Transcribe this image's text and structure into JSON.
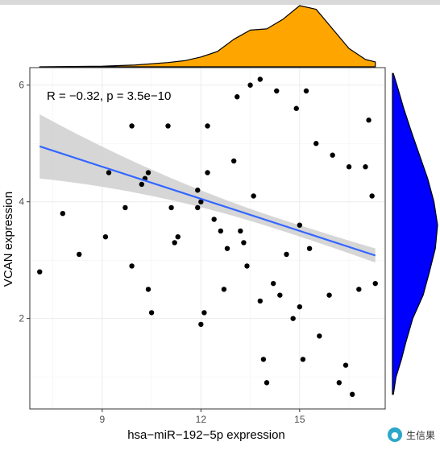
{
  "chart_data": {
    "type": "scatter",
    "title": "",
    "annotation": "R = −0.32, p = 3.5e−10",
    "xlabel": "hsa−miR−192−5p expression",
    "ylabel": "VCAN expression",
    "xlim": [
      6.8,
      17.6
    ],
    "ylim": [
      0.45,
      6.3
    ],
    "x_ticks": [
      9,
      12,
      15
    ],
    "y_ticks": [
      2,
      4,
      6
    ],
    "grid": true,
    "colors": {
      "points": "#000000",
      "fit_line": "#3366FF",
      "confidence_band": "#cccccc",
      "top_density": "#FFA500",
      "right_density": "#0000FF"
    },
    "regression": {
      "x": [
        7.1,
        17.3
      ],
      "y": [
        4.95,
        3.08
      ],
      "ci_low_half_width": [
        0.55,
        0.12
      ]
    },
    "points": [
      [
        7.1,
        2.8
      ],
      [
        7.8,
        3.8
      ],
      [
        8.3,
        3.1
      ],
      [
        9.1,
        3.4
      ],
      [
        9.2,
        4.5
      ],
      [
        9.7,
        3.9
      ],
      [
        9.9,
        2.9
      ],
      [
        9.9,
        5.3
      ],
      [
        10.2,
        4.3
      ],
      [
        10.3,
        4.4
      ],
      [
        10.4,
        4.5
      ],
      [
        10.4,
        2.5
      ],
      [
        10.5,
        2.1
      ],
      [
        11.0,
        5.3
      ],
      [
        11.1,
        3.9
      ],
      [
        11.2,
        3.3
      ],
      [
        11.3,
        3.4
      ],
      [
        11.9,
        4.2
      ],
      [
        11.9,
        3.9
      ],
      [
        12.0,
        1.9
      ],
      [
        12.0,
        4.0
      ],
      [
        12.1,
        2.1
      ],
      [
        12.2,
        5.3
      ],
      [
        12.2,
        4.5
      ],
      [
        12.4,
        3.7
      ],
      [
        12.6,
        3.5
      ],
      [
        12.7,
        2.5
      ],
      [
        12.8,
        3.2
      ],
      [
        13.0,
        4.7
      ],
      [
        13.2,
        3.5
      ],
      [
        13.3,
        3.3
      ],
      [
        13.4,
        2.9
      ],
      [
        13.6,
        4.1
      ],
      [
        13.8,
        2.3
      ],
      [
        13.9,
        1.3
      ],
      [
        14.0,
        0.9
      ],
      [
        14.2,
        2.6
      ],
      [
        14.4,
        2.4
      ],
      [
        14.6,
        3.1
      ],
      [
        14.8,
        2.0
      ],
      [
        15.0,
        2.2
      ],
      [
        15.0,
        3.6
      ],
      [
        15.1,
        1.3
      ],
      [
        15.2,
        5.9
      ],
      [
        15.3,
        3.2
      ],
      [
        15.6,
        1.7
      ],
      [
        15.9,
        2.4
      ],
      [
        16.2,
        0.9
      ],
      [
        16.4,
        1.2
      ],
      [
        16.6,
        0.7
      ],
      [
        16.8,
        2.5
      ],
      [
        17.0,
        4.6
      ],
      [
        17.1,
        5.4
      ],
      [
        17.2,
        4.1
      ],
      [
        17.3,
        2.6
      ],
      [
        13.1,
        5.8
      ],
      [
        13.5,
        6.0
      ],
      [
        13.8,
        6.1
      ],
      [
        14.3,
        5.9
      ],
      [
        14.9,
        5.6
      ],
      [
        15.5,
        5.0
      ],
      [
        16.0,
        4.8
      ],
      [
        16.5,
        4.6
      ]
    ],
    "top_density": {
      "x": [
        7.1,
        9,
        10,
        11,
        11.5,
        12,
        12.5,
        13,
        13.5,
        14,
        14.5,
        15,
        15.5,
        16,
        16.5,
        17,
        17.3
      ],
      "density": [
        0.0,
        0.01,
        0.03,
        0.07,
        0.1,
        0.16,
        0.25,
        0.45,
        0.6,
        0.62,
        0.78,
        1.0,
        0.94,
        0.62,
        0.3,
        0.12,
        0.08
      ]
    },
    "right_density": {
      "y": [
        0.7,
        1,
        1.3,
        1.6,
        2,
        2.4,
        2.8,
        3.2,
        3.6,
        4,
        4.4,
        4.8,
        5.2,
        5.6,
        6,
        6.2
      ],
      "density": [
        0.02,
        0.08,
        0.2,
        0.3,
        0.45,
        0.68,
        0.82,
        0.95,
        1.0,
        0.92,
        0.78,
        0.6,
        0.42,
        0.25,
        0.1,
        0.02
      ]
    }
  }
}
